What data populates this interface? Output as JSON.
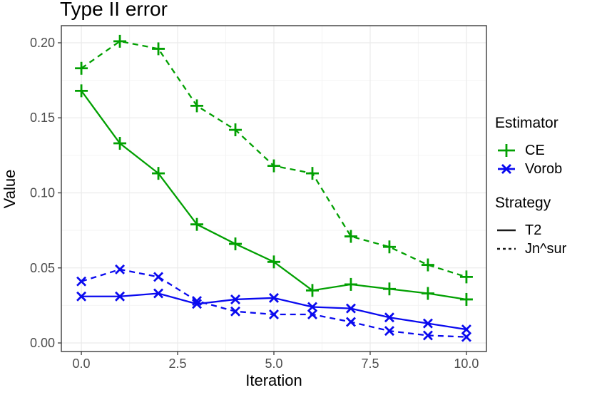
{
  "title": "Type II error",
  "axes": {
    "x_label": "Iteration",
    "y_label": "Value"
  },
  "legend": {
    "estimator_title": "Estimator",
    "strategy_title": "Strategy"
  },
  "colors": {
    "ce_green": "#02A002",
    "vorob_blue": "#0A0AEF",
    "tick_text": "#4D4D4D",
    "axis_line": "#3C3C3C",
    "grid_major": "#EBEBEB",
    "grid_minor": "#F4F4F4",
    "legend_key_black": "#1A1A1A"
  },
  "chart_data": {
    "type": "line",
    "title": "Type II error",
    "xlabel": "Iteration",
    "ylabel": "Value",
    "x": [
      0,
      1,
      2,
      3,
      4,
      5,
      6,
      7,
      8,
      9,
      10
    ],
    "xlim": [
      -0.52,
      10.52
    ],
    "ylim": [
      -0.0057,
      0.2114
    ],
    "x_ticks": {
      "values": [
        0,
        2.5,
        5,
        7.5,
        10
      ],
      "labels": [
        "0.0",
        "2.5",
        "5.0",
        "7.5",
        "10.0"
      ]
    },
    "x_minor_ticks": [
      1.25,
      3.75,
      6.25,
      8.75
    ],
    "y_ticks": {
      "values": [
        0,
        0.05,
        0.1,
        0.15,
        0.2
      ],
      "labels": [
        "0.00",
        "0.05",
        "0.10",
        "0.15",
        "0.20"
      ]
    },
    "y_minor_ticks": [
      0.025,
      0.075,
      0.125,
      0.175
    ],
    "estimators": [
      {
        "name": "CE",
        "marker": "plus",
        "color": "#02A002"
      },
      {
        "name": "Vorob",
        "marker": "cross",
        "color": "#0A0AEF"
      }
    ],
    "strategies": [
      {
        "name": "T2",
        "line": "solid"
      },
      {
        "name": "Jn^sur",
        "line": "dashed"
      }
    ],
    "series": [
      {
        "estimator": "CE",
        "strategy": "Jn^sur",
        "values": [
          0.183,
          0.201,
          0.196,
          0.158,
          0.142,
          0.118,
          0.113,
          0.071,
          0.064,
          0.052,
          0.044
        ]
      },
      {
        "estimator": "CE",
        "strategy": "T2",
        "values": [
          0.168,
          0.133,
          0.113,
          0.079,
          0.066,
          0.054,
          0.035,
          0.039,
          0.036,
          0.033,
          0.029
        ]
      },
      {
        "estimator": "Vorob",
        "strategy": "Jn^sur",
        "values": [
          0.041,
          0.049,
          0.044,
          0.028,
          0.021,
          0.019,
          0.019,
          0.014,
          0.008,
          0.005,
          0.004
        ]
      },
      {
        "estimator": "Vorob",
        "strategy": "T2",
        "values": [
          0.031,
          0.031,
          0.033,
          0.026,
          0.029,
          0.03,
          0.024,
          0.023,
          0.017,
          0.013,
          0.009
        ]
      }
    ],
    "legend_position": "right",
    "grid": true
  }
}
